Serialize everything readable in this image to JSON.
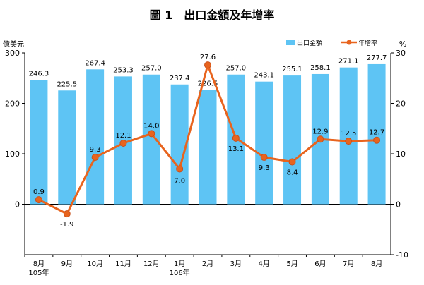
{
  "chart_data": {
    "type": "bar",
    "title": "圖 1　出口金額及年增率",
    "left_axis_unit": "億美元",
    "right_axis_unit": "%",
    "legend_placement": "top-right",
    "grid": false,
    "categories": [
      [
        "8月",
        "105年"
      ],
      [
        "9月"
      ],
      [
        "10月"
      ],
      [
        "11月"
      ],
      [
        "12月"
      ],
      [
        "1月",
        "106年"
      ],
      [
        "2月"
      ],
      [
        "3月"
      ],
      [
        "4月"
      ],
      [
        "5月"
      ],
      [
        "6月"
      ],
      [
        "7月"
      ],
      [
        "8月"
      ]
    ],
    "ylim_left": [
      0,
      300
    ],
    "left_ticks": [
      0,
      100,
      200,
      300
    ],
    "ylim_right": [
      -10,
      30
    ],
    "right_ticks": [
      -10,
      0,
      10,
      20,
      30
    ],
    "series": [
      {
        "name": "出口金額",
        "kind": "bar",
        "axis": "left",
        "color": "#5ec4f4",
        "values": [
          246.3,
          225.5,
          267.4,
          253.3,
          257.0,
          237.4,
          226.5,
          257.0,
          243.1,
          255.1,
          258.1,
          271.1,
          277.7
        ],
        "labels": [
          "246.3",
          "225.5",
          "267.4",
          "253.3",
          "257.0",
          "237.4",
          "226.5",
          "257.0",
          "243.1",
          "255.1",
          "258.1",
          "271.1",
          "277.7"
        ]
      },
      {
        "name": "年增率",
        "kind": "line",
        "axis": "right",
        "color": "#e8641e",
        "values": [
          0.9,
          -1.9,
          9.3,
          12.1,
          14.0,
          7.0,
          27.6,
          13.1,
          9.3,
          8.4,
          12.9,
          12.5,
          12.7
        ],
        "labels": [
          "0.9",
          "-1.9",
          "9.3",
          "12.1",
          "14.0",
          "7.0",
          "27.6",
          "13.1",
          "9.3",
          "8.4",
          "12.9",
          "12.5",
          "12.7"
        ]
      }
    ]
  }
}
